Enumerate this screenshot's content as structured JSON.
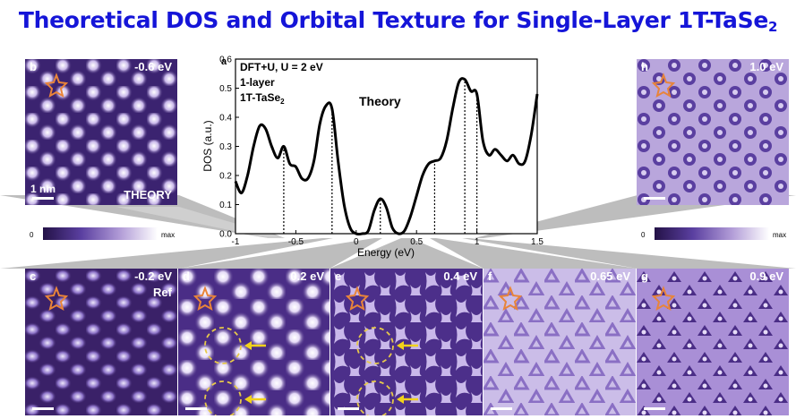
{
  "title": {
    "main": "Theoretical DOS and Orbital Texture for Single-Layer 1T-TaSe",
    "sub": "2"
  },
  "panels": {
    "b": {
      "letter": "b",
      "energy": "-0.6 eV",
      "scale_text": "1 nm",
      "extra": "THEORY"
    },
    "h": {
      "letter": "h",
      "energy": "1.0 eV"
    },
    "c": {
      "letter": "c",
      "energy": "-0.2 eV",
      "extra": "Ref"
    },
    "d": {
      "letter": "d",
      "energy": "0.2 eV"
    },
    "e": {
      "letter": "e",
      "energy": "0.4 eV"
    },
    "f": {
      "letter": "f",
      "energy": "0.65 eV"
    },
    "g": {
      "letter": "g",
      "energy": "0.9 eV"
    }
  },
  "colorbar": {
    "min_label": "0",
    "max_label": "max"
  },
  "chart_data": {
    "type": "line",
    "panel_label": "a",
    "annotation_lines": [
      "DFT+U, U = 2 eV",
      "1-layer",
      "1T-TaSe"
    ],
    "annotation_sub": "2",
    "theory_label": "Theory",
    "xlabel": "Energy (eV)",
    "ylabel": "DOS (a.u.)",
    "xlim": [
      -1,
      1.5
    ],
    "ylim": [
      0,
      0.6
    ],
    "xticks": [
      -1,
      -0.5,
      0,
      0.5,
      1,
      1.5
    ],
    "xtick_labels": [
      "-1",
      "-0.5",
      "0",
      "0.5",
      "1",
      "1.5"
    ],
    "yticks": [
      0,
      0.1,
      0.2,
      0.3,
      0.4,
      0.5,
      0.6
    ],
    "ytick_labels": [
      "0.0",
      "0.1",
      "0.2",
      "0.3",
      "0.4",
      "0.5",
      "0.6"
    ],
    "series": [
      {
        "x": [
          -1.0,
          -0.95,
          -0.9,
          -0.85,
          -0.8,
          -0.75,
          -0.7,
          -0.65,
          -0.6,
          -0.55,
          -0.5,
          -0.45,
          -0.4,
          -0.35,
          -0.3,
          -0.25,
          -0.2,
          -0.15,
          -0.1,
          -0.05,
          0.0,
          0.05,
          0.1,
          0.15,
          0.2,
          0.25,
          0.3,
          0.35,
          0.4,
          0.45,
          0.5,
          0.55,
          0.6,
          0.65,
          0.7,
          0.75,
          0.8,
          0.85,
          0.9,
          0.95,
          1.0,
          1.05,
          1.1,
          1.15,
          1.2,
          1.25,
          1.3,
          1.35,
          1.4,
          1.45,
          1.5
        ],
        "y": [
          0.18,
          0.14,
          0.2,
          0.3,
          0.37,
          0.36,
          0.3,
          0.26,
          0.3,
          0.24,
          0.23,
          0.19,
          0.19,
          0.25,
          0.38,
          0.44,
          0.43,
          0.25,
          0.1,
          0.02,
          0.0,
          0.0,
          0.01,
          0.08,
          0.12,
          0.09,
          0.02,
          0.0,
          0.01,
          0.06,
          0.13,
          0.2,
          0.24,
          0.25,
          0.26,
          0.32,
          0.43,
          0.52,
          0.53,
          0.49,
          0.48,
          0.32,
          0.27,
          0.29,
          0.27,
          0.25,
          0.27,
          0.24,
          0.25,
          0.34,
          0.48
        ]
      }
    ],
    "marker_energies": [
      -0.6,
      -0.2,
      0.2,
      0.65,
      0.9,
      1.0
    ],
    "grid": false
  }
}
